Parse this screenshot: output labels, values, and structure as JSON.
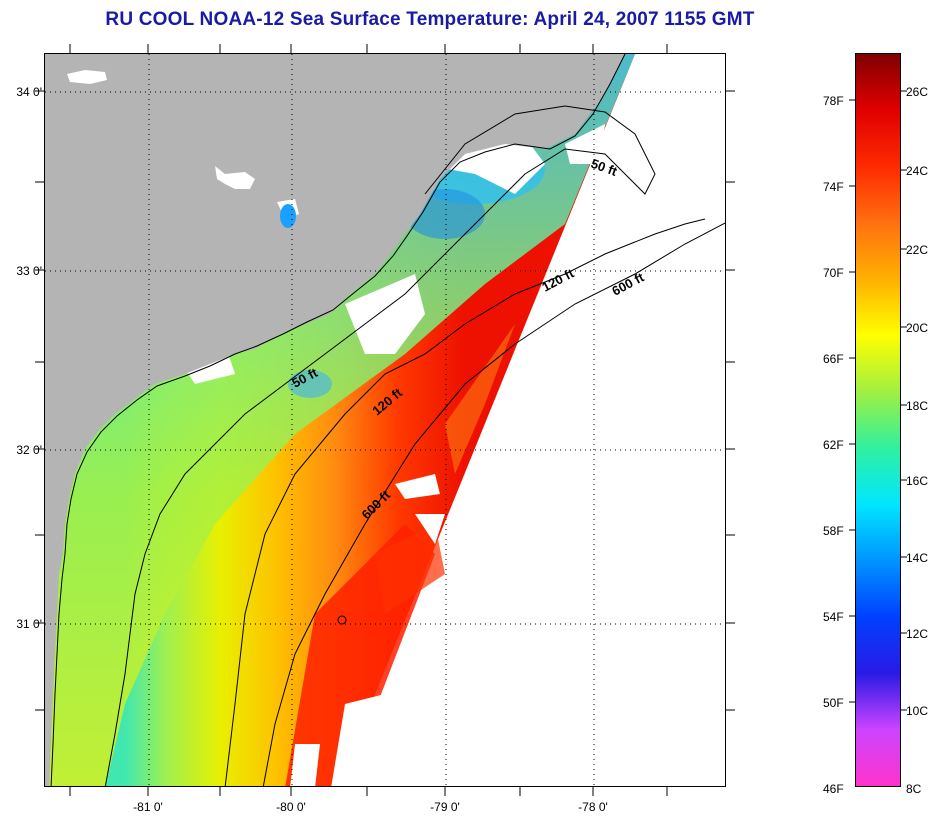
{
  "title": "RU COOL  NOAA-12  Sea Surface Temperature:  April 24, 2007 1155 GMT",
  "map": {
    "lat_labels": [
      "34 0'",
      "33 0'",
      "32 0'",
      "31 0'"
    ],
    "lon_labels": [
      "-81 0'",
      "-80 0'",
      "-79 0'",
      "-78 0'"
    ],
    "isobath_labels": {
      "fifty_north": "50 ft",
      "fifty_south": "50 ft",
      "onetwenty_north": "120 ft",
      "onetwenty_south": "120 ft",
      "sixhundred_north": "600 ft",
      "sixhundred_south": "600 ft"
    },
    "colors": {
      "land": "#b4b4b4",
      "no_data": "#ffffff",
      "coast": "#000000"
    }
  },
  "colorbar": {
    "fahrenheit_labels": [
      "78F",
      "74F",
      "70F",
      "66F",
      "62F",
      "58F",
      "54F",
      "50F",
      "46F"
    ],
    "celsius_labels": [
      "26C",
      "24C",
      "22C",
      "20C",
      "18C",
      "16C",
      "14C",
      "12C",
      "10C",
      "8C"
    ],
    "colors": [
      "#ff33cc",
      "#cc44ff",
      "#2a1ae6",
      "#0040ff",
      "#0094ff",
      "#00e6ff",
      "#30f0a0",
      "#a0f040",
      "#ffff00",
      "#ffb000",
      "#ff7010",
      "#ff2a00",
      "#e00000",
      "#800000"
    ]
  }
}
